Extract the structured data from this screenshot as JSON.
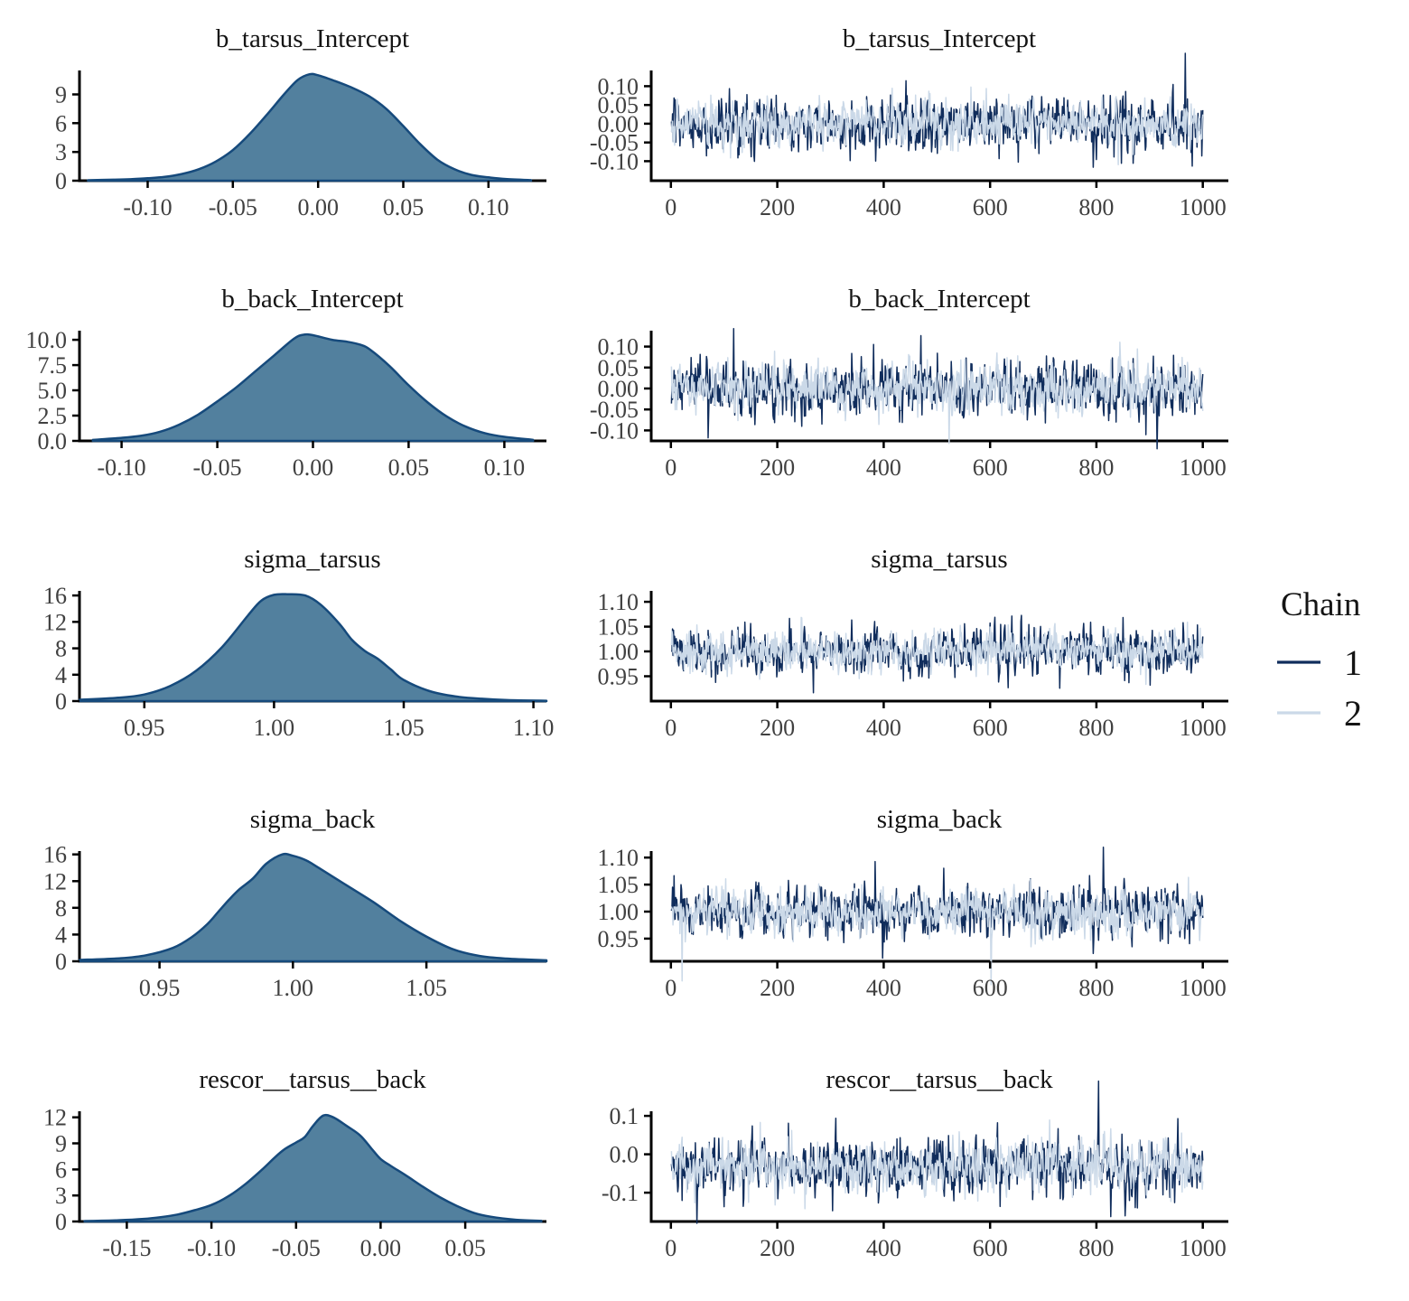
{
  "figure": {
    "background": "#ffffff",
    "title_color": "#141414",
    "tick_label_color": "#404040",
    "axis_color": "#000000",
    "density_fill": "#52809E",
    "density_stroke": "#164A7C",
    "chain_colors": {
      "1": "#102D5C",
      "2": "#CBD9E8"
    }
  },
  "legend": {
    "title": "Chain",
    "entries": [
      {
        "label": "1",
        "color": "#102D5C"
      },
      {
        "label": "2",
        "color": "#CBD9E8"
      }
    ]
  },
  "chart_data": [
    {
      "type": "area",
      "kind": "density",
      "row": 1,
      "title": "b_tarsus_Intercept",
      "xlim": [
        -0.14,
        0.134
      ],
      "ylim": [
        0,
        11.5
      ],
      "x": [
        -0.135,
        -0.12,
        -0.11,
        -0.1,
        -0.09,
        -0.08,
        -0.07,
        -0.06,
        -0.05,
        -0.04,
        -0.03,
        -0.02,
        -0.012,
        -0.005,
        0.0,
        0.01,
        0.02,
        0.03,
        0.04,
        0.05,
        0.06,
        0.07,
        0.08,
        0.09,
        0.1,
        0.11,
        0.125
      ],
      "y": [
        0.05,
        0.1,
        0.15,
        0.25,
        0.4,
        0.7,
        1.2,
        2.0,
        3.2,
        4.9,
        6.9,
        9.0,
        10.5,
        11.1,
        11.0,
        10.4,
        9.7,
        8.8,
        7.5,
        5.7,
        3.8,
        2.2,
        1.2,
        0.6,
        0.35,
        0.18,
        0.06
      ],
      "x_tick_values": [
        -0.1,
        -0.05,
        0.0,
        0.05,
        0.1
      ],
      "x_tick_labels": [
        "-0.10",
        "-0.05",
        "0.00",
        "0.05",
        "0.10"
      ],
      "y_tick_values": [
        0,
        3,
        6,
        9
      ],
      "y_tick_labels": [
        "0",
        "3",
        "6",
        "9"
      ]
    },
    {
      "type": "line",
      "kind": "trace",
      "row": 1,
      "title": "b_tarsus_Intercept",
      "iterations": 1000,
      "xlim": [
        -37,
        1048
      ],
      "ylim": [
        -0.152,
        0.142
      ],
      "x_tick_values": [
        0,
        200,
        400,
        600,
        800,
        1000
      ],
      "x_tick_labels": [
        "0",
        "200",
        "400",
        "600",
        "800",
        "1000"
      ],
      "y_tick_values": [
        0.1,
        0.05,
        0.0,
        -0.05,
        -0.1
      ],
      "y_tick_labels": [
        "0.10",
        "0.05",
        "0.00",
        "-0.05",
        "-0.10"
      ],
      "series": [
        {
          "name": "1",
          "mean": 0.0,
          "sd": 0.034,
          "seed": 101
        },
        {
          "name": "2",
          "mean": 0.0,
          "sd": 0.028,
          "seed": 102
        }
      ]
    },
    {
      "type": "area",
      "kind": "density",
      "row": 2,
      "title": "b_back_Intercept",
      "xlim": [
        -0.122,
        0.122
      ],
      "ylim": [
        0,
        10.9
      ],
      "x": [
        -0.115,
        -0.1,
        -0.09,
        -0.08,
        -0.07,
        -0.06,
        -0.05,
        -0.04,
        -0.03,
        -0.02,
        -0.01,
        -0.005,
        0.0,
        0.01,
        0.018,
        0.025,
        0.03,
        0.04,
        0.05,
        0.06,
        0.07,
        0.08,
        0.09,
        0.1,
        0.115
      ],
      "y": [
        0.1,
        0.3,
        0.5,
        0.9,
        1.6,
        2.6,
        3.9,
        5.3,
        6.9,
        8.5,
        10.1,
        10.5,
        10.45,
        10.0,
        9.8,
        9.5,
        9.0,
        7.4,
        5.5,
        3.8,
        2.4,
        1.4,
        0.75,
        0.4,
        0.1
      ],
      "x_tick_values": [
        -0.1,
        -0.05,
        0.0,
        0.05,
        0.1
      ],
      "x_tick_labels": [
        "-0.10",
        "-0.05",
        "0.00",
        "0.05",
        "0.10"
      ],
      "y_tick_values": [
        0,
        2.5,
        5.0,
        7.5,
        10.0
      ],
      "y_tick_labels": [
        "0.0",
        "2.5",
        "5.0",
        "7.5",
        "10.0"
      ]
    },
    {
      "type": "line",
      "kind": "trace",
      "row": 2,
      "title": "b_back_Intercept",
      "iterations": 1000,
      "xlim": [
        -37,
        1048
      ],
      "ylim": [
        -0.125,
        0.138
      ],
      "x_tick_values": [
        0,
        200,
        400,
        600,
        800,
        1000
      ],
      "x_tick_labels": [
        "0",
        "200",
        "400",
        "600",
        "800",
        "1000"
      ],
      "y_tick_values": [
        0.1,
        0.05,
        0.0,
        -0.05,
        -0.1
      ],
      "y_tick_labels": [
        "0.10",
        "0.05",
        "0.00",
        "-0.05",
        "-0.10"
      ],
      "series": [
        {
          "name": "1",
          "mean": 0.0,
          "sd": 0.032,
          "seed": 201
        },
        {
          "name": "2",
          "mean": 0.0,
          "sd": 0.028,
          "seed": 202
        }
      ]
    },
    {
      "type": "area",
      "kind": "density",
      "row": 3,
      "title": "sigma_tarsus",
      "xlim": [
        0.925,
        1.105
      ],
      "ylim": [
        0,
        16.7
      ],
      "x": [
        0.925,
        0.94,
        0.95,
        0.96,
        0.97,
        0.98,
        0.99,
        0.995,
        1.0,
        1.005,
        1.012,
        1.018,
        1.025,
        1.03,
        1.035,
        1.04,
        1.045,
        1.05,
        1.06,
        1.07,
        1.08,
        1.09,
        1.105
      ],
      "y": [
        0.2,
        0.5,
        1.0,
        2.3,
        4.6,
        8.2,
        13.0,
        15.2,
        16.1,
        16.2,
        16.0,
        14.6,
        11.8,
        9.3,
        7.6,
        6.4,
        4.8,
        3.2,
        1.5,
        0.7,
        0.35,
        0.15,
        0.05
      ],
      "x_tick_values": [
        0.95,
        1.0,
        1.05,
        1.1
      ],
      "x_tick_labels": [
        "0.95",
        "1.00",
        "1.05",
        "1.10"
      ],
      "y_tick_values": [
        0,
        4,
        8,
        12,
        16
      ],
      "y_tick_labels": [
        "0",
        "4",
        "8",
        "12",
        "16"
      ]
    },
    {
      "type": "line",
      "kind": "trace",
      "row": 3,
      "title": "sigma_tarsus",
      "iterations": 1000,
      "xlim": [
        -37,
        1048
      ],
      "ylim": [
        0.9,
        1.122
      ],
      "x_tick_values": [
        0,
        200,
        400,
        600,
        800,
        1000
      ],
      "x_tick_labels": [
        "0",
        "200",
        "400",
        "600",
        "800",
        "1000"
      ],
      "y_tick_values": [
        1.1,
        1.05,
        1.0,
        0.95
      ],
      "y_tick_labels": [
        "1.10",
        "1.05",
        "1.00",
        "0.95"
      ],
      "series": [
        {
          "name": "1",
          "mean": 1.002,
          "sd": 0.022,
          "seed": 301
        },
        {
          "name": "2",
          "mean": 1.002,
          "sd": 0.019,
          "seed": 302
        }
      ]
    },
    {
      "type": "area",
      "kind": "density",
      "row": 4,
      "title": "sigma_back",
      "xlim": [
        0.92,
        1.095
      ],
      "ylim": [
        0,
        16.5
      ],
      "x": [
        0.92,
        0.935,
        0.945,
        0.955,
        0.962,
        0.968,
        0.972,
        0.976,
        0.98,
        0.985,
        0.99,
        0.996,
        1.0,
        1.005,
        1.01,
        1.02,
        1.03,
        1.04,
        1.05,
        1.06,
        1.07,
        1.08,
        1.095
      ],
      "y": [
        0.2,
        0.45,
        0.9,
        2.0,
        3.6,
        5.6,
        7.4,
        9.2,
        10.8,
        12.4,
        14.6,
        16.0,
        15.8,
        15.1,
        13.9,
        11.4,
        8.9,
        6.1,
        3.7,
        1.8,
        0.8,
        0.4,
        0.15
      ],
      "x_tick_values": [
        0.95,
        1.0,
        1.05
      ],
      "x_tick_labels": [
        "0.95",
        "1.00",
        "1.05"
      ],
      "y_tick_values": [
        0,
        4,
        8,
        12,
        16
      ],
      "y_tick_labels": [
        "0",
        "4",
        "8",
        "12",
        "16"
      ]
    },
    {
      "type": "line",
      "kind": "trace",
      "row": 4,
      "title": "sigma_back",
      "iterations": 1000,
      "xlim": [
        -37,
        1048
      ],
      "ylim": [
        0.908,
        1.112
      ],
      "x_tick_values": [
        0,
        200,
        400,
        600,
        800,
        1000
      ],
      "x_tick_labels": [
        "0",
        "200",
        "400",
        "600",
        "800",
        "1000"
      ],
      "y_tick_values": [
        1.1,
        1.05,
        1.0,
        0.95
      ],
      "y_tick_labels": [
        "1.10",
        "1.05",
        "1.00",
        "0.95"
      ],
      "series": [
        {
          "name": "1",
          "mean": 1.0,
          "sd": 0.023,
          "seed": 401
        },
        {
          "name": "2",
          "mean": 1.0,
          "sd": 0.02,
          "seed": 402
        }
      ]
    },
    {
      "type": "area",
      "kind": "density",
      "row": 5,
      "title": "rescor__tarsus__back",
      "xlim": [
        -0.178,
        0.098
      ],
      "ylim": [
        0,
        12.7
      ],
      "x": [
        -0.175,
        -0.155,
        -0.14,
        -0.13,
        -0.12,
        -0.11,
        -0.1,
        -0.09,
        -0.08,
        -0.07,
        -0.063,
        -0.057,
        -0.05,
        -0.045,
        -0.04,
        -0.034,
        -0.028,
        -0.02,
        -0.012,
        -0.005,
        0.0,
        0.006,
        0.015,
        0.025,
        0.035,
        0.045,
        0.055,
        0.065,
        0.08,
        0.095
      ],
      "y": [
        0.05,
        0.15,
        0.3,
        0.5,
        0.8,
        1.3,
        1.9,
        2.9,
        4.3,
        6.0,
        7.3,
        8.3,
        9.1,
        9.7,
        11.0,
        12.2,
        12.0,
        11.0,
        9.9,
        8.3,
        7.2,
        6.4,
        5.3,
        4.0,
        2.8,
        1.8,
        1.0,
        0.55,
        0.2,
        0.07
      ],
      "x_tick_values": [
        -0.15,
        -0.1,
        -0.05,
        0.0,
        0.05
      ],
      "x_tick_labels": [
        "-0.15",
        "-0.10",
        "-0.05",
        "0.00",
        "0.05"
      ],
      "y_tick_values": [
        0,
        3,
        6,
        9,
        12
      ],
      "y_tick_labels": [
        "0",
        "3",
        "6",
        "9",
        "12"
      ]
    },
    {
      "type": "line",
      "kind": "trace",
      "row": 5,
      "title": "rescor__tarsus__back",
      "iterations": 1000,
      "xlim": [
        -37,
        1048
      ],
      "ylim": [
        -0.175,
        0.112
      ],
      "x_tick_values": [
        0,
        200,
        400,
        600,
        800,
        1000
      ],
      "x_tick_labels": [
        "0",
        "200",
        "400",
        "600",
        "800",
        "1000"
      ],
      "y_tick_values": [
        0.1,
        0.0,
        -0.1
      ],
      "y_tick_labels": [
        "0.1",
        "0.0",
        "-0.1"
      ],
      "series": [
        {
          "name": "1",
          "mean": -0.033,
          "sd": 0.036,
          "seed": 501
        },
        {
          "name": "2",
          "mean": -0.033,
          "sd": 0.031,
          "seed": 502
        }
      ]
    }
  ]
}
